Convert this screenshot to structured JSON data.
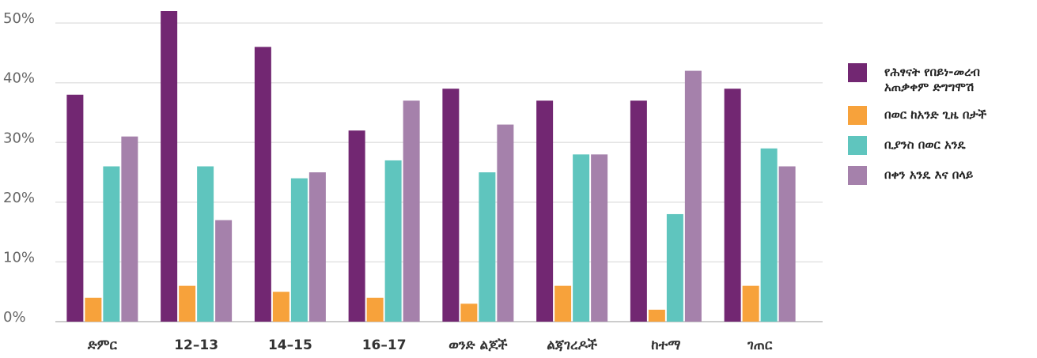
{
  "chart_data": {
    "type": "bar",
    "categories": [
      "ድምር",
      "12–13",
      "14–15",
      "16–17",
      "ወንድ ልጆች",
      "ልጃገረዶች",
      "ከተማ",
      "ገጠር"
    ],
    "series": [
      {
        "name": "የሕፃናት የበይነ-መረብ አጠቃቀም ድግግሞሽ",
        "color": "#722772",
        "values": [
          38,
          52,
          46,
          32,
          39,
          37,
          37,
          39
        ]
      },
      {
        "name": "በወር ከአንድ ጊዜ በታች",
        "color": "#f7a23b",
        "values": [
          4,
          6,
          5,
          4,
          3,
          6,
          2,
          6
        ]
      },
      {
        "name": "ቢያንስ በወር አንዴ",
        "color": "#5fc5be",
        "values": [
          26,
          26,
          24,
          27,
          25,
          28,
          18,
          29
        ]
      },
      {
        "name": "በቀን አንዴ እና በላይ",
        "color": "#a581ab",
        "values": [
          31,
          17,
          25,
          37,
          33,
          28,
          42,
          26
        ]
      }
    ],
    "ylim": [
      0,
      52
    ],
    "yticks": [
      {
        "value": 0,
        "label": "0%"
      },
      {
        "value": 10,
        "label": "10%"
      },
      {
        "value": 20,
        "label": "20%"
      },
      {
        "value": 30,
        "label": "30%"
      },
      {
        "value": 40,
        "label": "40%"
      },
      {
        "value": 50,
        "label": "50%"
      }
    ],
    "grid": true,
    "legend": "right"
  }
}
